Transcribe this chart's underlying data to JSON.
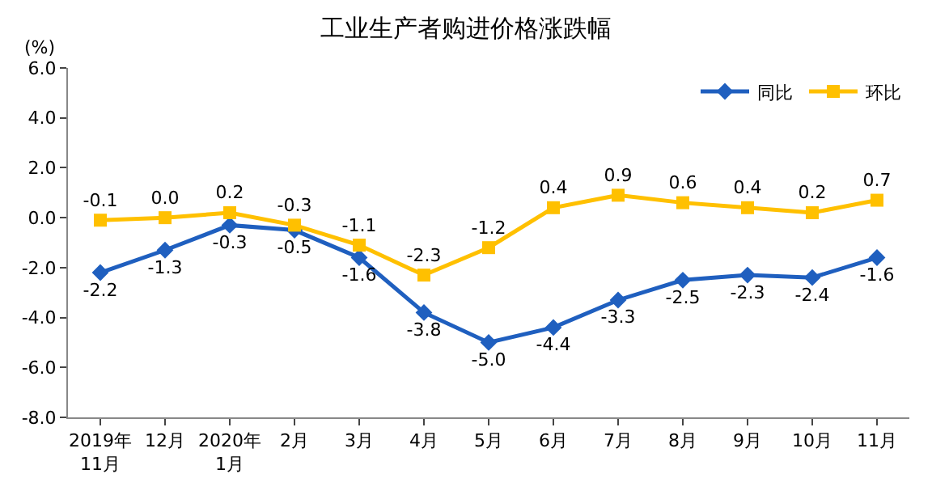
{
  "chart_data": {
    "type": "line",
    "title": "工业生产者购进价格涨跌幅",
    "ylabel": "(%)",
    "categories": [
      "2019年\n11月",
      "12月",
      "2020年\n1月",
      "2月",
      "3月",
      "4月",
      "5月",
      "6月",
      "7月",
      "8月",
      "9月",
      "10月",
      "11月"
    ],
    "series": [
      {
        "name": "同比",
        "color": "#1f5fbf",
        "marker": "diamond",
        "values": [
          -2.2,
          -1.3,
          -0.3,
          -0.5,
          -1.6,
          -3.8,
          -5.0,
          -4.4,
          -3.3,
          -2.5,
          -2.3,
          -2.4,
          -1.6
        ],
        "value_labels": [
          "-2.2",
          "-1.3",
          "-0.3",
          "-0.5",
          "-1.6",
          "-3.8",
          "-5.0",
          "-4.4",
          "-3.3",
          "-2.5",
          "-2.3",
          "-2.4",
          "-1.6"
        ]
      },
      {
        "name": "环比",
        "color": "#ffc000",
        "marker": "square",
        "values": [
          -0.1,
          0.0,
          0.2,
          -0.3,
          -1.1,
          -2.3,
          -1.2,
          0.4,
          0.9,
          0.6,
          0.4,
          0.2,
          0.7
        ],
        "value_labels": [
          "-0.1",
          "0.0",
          "0.2",
          "-0.3",
          "-1.1",
          "-2.3",
          "-1.2",
          "0.4",
          "0.9",
          "0.6",
          "0.4",
          "0.2",
          "0.7"
        ]
      }
    ],
    "ylim": [
      -8,
      6
    ],
    "yticks": [
      {
        "value": 6,
        "label": "6.0"
      },
      {
        "value": 4,
        "label": "4.0"
      },
      {
        "value": 2,
        "label": "2.0"
      },
      {
        "value": 0,
        "label": "0.0"
      },
      {
        "value": -2,
        "label": "-2.0"
      },
      {
        "value": -4,
        "label": "-4.0"
      },
      {
        "value": -6,
        "label": "-6.0"
      },
      {
        "value": -8,
        "label": "-8.0"
      }
    ],
    "legend": "top right",
    "line_style": "solid"
  }
}
